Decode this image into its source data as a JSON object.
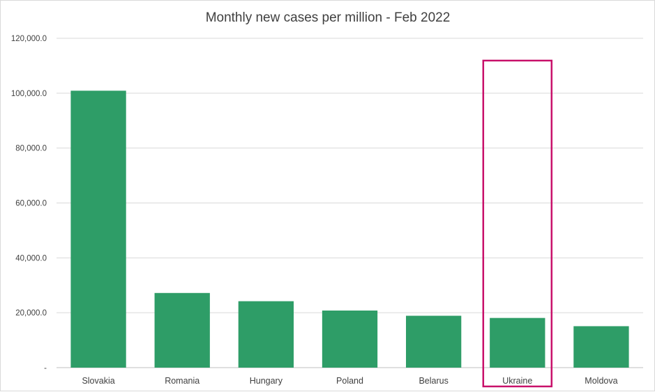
{
  "chart_data": {
    "type": "bar",
    "title": "Monthly new cases per million - Feb 2022",
    "xlabel": "",
    "ylabel": "",
    "categories": [
      "Slovakia",
      "Romania",
      "Hungary",
      "Poland",
      "Belarus",
      "Ukraine",
      "Moldova"
    ],
    "values": [
      100900,
      27200,
      24200,
      20800,
      18900,
      18100,
      15100
    ],
    "ylim": [
      0,
      120000
    ],
    "yticks": [
      0,
      20000,
      40000,
      60000,
      80000,
      100000,
      120000
    ],
    "ytick_labels": [
      "-",
      "20,000.0",
      "40,000.0",
      "60,000.0",
      "80,000.0",
      "100,000.0",
      "120,000.0"
    ],
    "grid": true,
    "legend": "none",
    "bar_color": "#2e9d67",
    "highlight": {
      "category": "Ukraine",
      "color": "#c8106a"
    }
  }
}
